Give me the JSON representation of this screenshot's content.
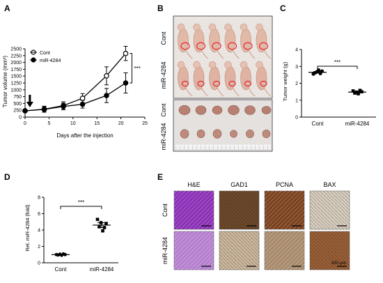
{
  "panels": {
    "a": "A",
    "b": "B",
    "c": "C",
    "d": "D",
    "e": "E"
  },
  "panel_b": {
    "row_cont": "Cont",
    "row_mir": "miR-4284",
    "tumor_cont": "Cont",
    "tumor_mir": "miR-4284"
  },
  "panel_e": {
    "columns": [
      "H&E",
      "GAD1",
      "PCNA",
      "BAX"
    ],
    "rows": [
      "Cont",
      "miR-4284"
    ],
    "scale_label": "100 μm",
    "tile_colors": [
      [
        "#8a2fb6",
        "#6e4a2c",
        "#7a3f1c",
        "#d9cfc0"
      ],
      [
        "#b47fcf",
        "#cdb89e",
        "#a88a6c",
        "#9a6038"
      ]
    ]
  },
  "chart_data": [
    {
      "id": "A",
      "type": "line",
      "xlabel": "Days after the injection",
      "ylabel": "Tumor volume (mm³)",
      "xlim": [
        0,
        25
      ],
      "ylim": [
        0,
        2500
      ],
      "xticks": [
        0,
        5,
        10,
        15,
        20,
        25
      ],
      "yticks": [
        0,
        250,
        500,
        750,
        1000,
        1250,
        1500,
        1750,
        2000,
        2250,
        2500
      ],
      "arrow_day": 1,
      "significance": "***",
      "series": [
        {
          "name": "Cont",
          "marker": "open-circle",
          "x": [
            0,
            4,
            8,
            12,
            17,
            21
          ],
          "y": [
            230,
            290,
            420,
            690,
            1510,
            2330
          ],
          "err": [
            50,
            110,
            140,
            170,
            330,
            260
          ]
        },
        {
          "name": "miR-4284",
          "marker": "filled-circle",
          "x": [
            0,
            4,
            8,
            12,
            17,
            21
          ],
          "y": [
            230,
            280,
            390,
            470,
            790,
            1250
          ],
          "err": [
            50,
            100,
            120,
            140,
            260,
            370
          ]
        }
      ]
    },
    {
      "id": "C",
      "type": "scatter",
      "categories": [
        "Cont",
        "miR-4284"
      ],
      "ylabel": "Tumor weight (g)",
      "ylim": [
        0,
        4
      ],
      "yticks": [
        0,
        1,
        2,
        3,
        4
      ],
      "significance": "***",
      "series": [
        {
          "name": "Cont",
          "marker": "hexagon",
          "values": [
            2.55,
            2.62,
            2.68,
            2.78,
            2.58,
            2.72
          ],
          "mean": 2.65,
          "sem": 0.05
        },
        {
          "name": "miR-4284",
          "marker": "square",
          "values": [
            1.55,
            1.42,
            1.48,
            1.38,
            1.58,
            1.5
          ],
          "mean": 1.48,
          "sem": 0.05
        }
      ]
    },
    {
      "id": "D",
      "type": "scatter",
      "categories": [
        "Cont",
        "miR-4284"
      ],
      "ylabel": "Rel. miR-4284 (fold)",
      "ylim": [
        0,
        8
      ],
      "yticks": [
        0,
        2,
        4,
        6,
        8
      ],
      "significance": "***",
      "series": [
        {
          "name": "Cont",
          "marker": "circle",
          "values": [
            1.0,
            0.95,
            1.05,
            0.92,
            1.08,
            1.0
          ],
          "mean": 1.0,
          "sem": 0.04
        },
        {
          "name": "miR-4284",
          "marker": "square",
          "values": [
            5.3,
            4.4,
            4.9,
            3.9,
            4.3,
            4.8
          ],
          "mean": 4.6,
          "sem": 0.3
        }
      ]
    }
  ]
}
